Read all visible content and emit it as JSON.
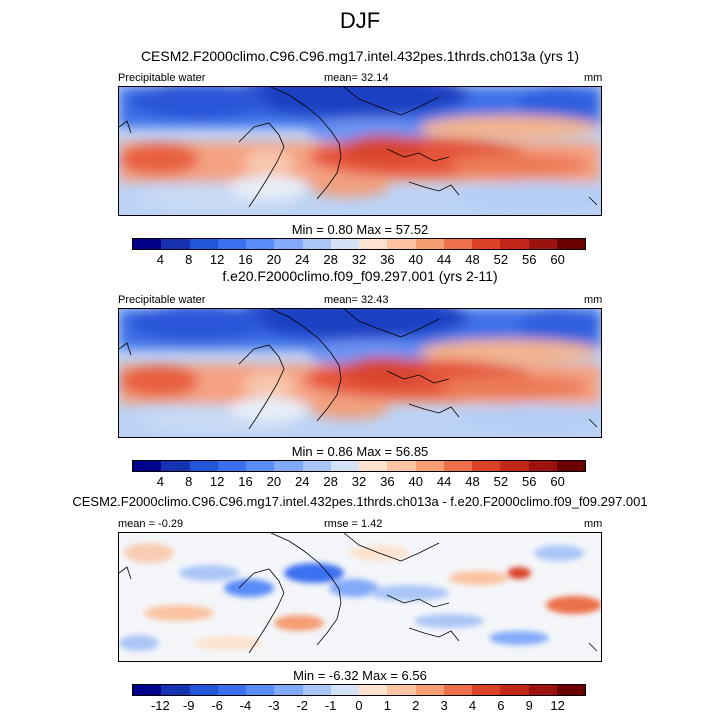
{
  "season": "DJF",
  "panels": [
    {
      "title": "CESM2.F2000climo.C96.C96.mg17.intel.432pes.1thrds.ch013a (yrs 1)",
      "left_label": "Precipitable water",
      "center_label": "mean=  32.14",
      "units": "mm",
      "stats": "Min =   0.80 Max =  57.52"
    },
    {
      "title": "f.e20.F2000climo.f09_f09.297.001 (yrs 2-11)",
      "left_label": "Precipitable water",
      "center_label": "mean=  32.43",
      "units": "mm",
      "stats": "Min =   0.86 Max =  56.85"
    },
    {
      "title": "CESM2.F2000climo.C96.C96.mg17.intel.432pes.1thrds.ch013a - f.e20.F2000climo.f09_f09.297.001",
      "left_label": "mean =  -0.29",
      "center_label": "rmse =   1.42",
      "units": "mm",
      "stats": "Min =  -6.32 Max =   6.56"
    }
  ],
  "colorbars": {
    "abs_labels": [
      "4",
      "8",
      "12",
      "16",
      "20",
      "24",
      "28",
      "32",
      "36",
      "40",
      "44",
      "48",
      "52",
      "56",
      "60"
    ],
    "diff_labels": [
      "-12",
      "-9",
      "-6",
      "-4",
      "-3",
      "-2",
      "-1",
      "0",
      "1",
      "2",
      "3",
      "4",
      "6",
      "9",
      "12"
    ],
    "colors": [
      "#00008b",
      "#1533b0",
      "#2255d8",
      "#3b6ff0",
      "#5a8cf7",
      "#82aaf9",
      "#aac6f7",
      "#d3e2f5",
      "#fde3cf",
      "#fbc3a1",
      "#f59d73",
      "#ec7049",
      "#dc4326",
      "#c2281a",
      "#9b120f",
      "#6a0000"
    ]
  },
  "chart_data": [
    {
      "type": "heatmap",
      "title": "CESM2.F2000climo.C96.C96.mg17.intel.432pes.1thrds.ch013a (yrs 1)",
      "variable": "Precipitable water",
      "units": "mm",
      "mean": 32.14,
      "min": 0.8,
      "max": 57.52,
      "contour_levels": [
        4,
        8,
        12,
        16,
        20,
        24,
        28,
        32,
        36,
        40,
        44,
        48,
        52,
        56,
        60
      ]
    },
    {
      "type": "heatmap",
      "title": "f.e20.F2000climo.f09_f09.297.001 (yrs 2-11)",
      "variable": "Precipitable water",
      "units": "mm",
      "mean": 32.43,
      "min": 0.86,
      "max": 56.85,
      "contour_levels": [
        4,
        8,
        12,
        16,
        20,
        24,
        28,
        32,
        36,
        40,
        44,
        48,
        52,
        56,
        60
      ]
    },
    {
      "type": "heatmap",
      "title": "CESM2.F2000climo.C96.C96.mg17.intel.432pes.1thrds.ch013a - f.e20.F2000climo.f09_f09.297.001",
      "units": "mm",
      "mean": -0.29,
      "rmse": 1.42,
      "min": -6.32,
      "max": 6.56,
      "contour_levels": [
        -12,
        -9,
        -6,
        -4,
        -3,
        -2,
        -1,
        0,
        1,
        2,
        3,
        4,
        6,
        9,
        12
      ]
    }
  ]
}
